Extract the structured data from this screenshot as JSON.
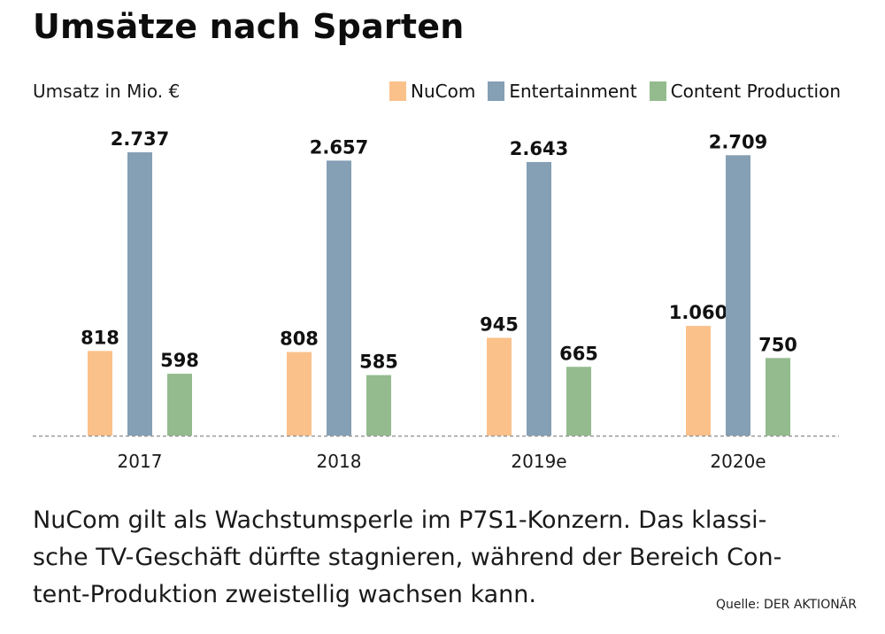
{
  "header": {
    "title": "Umsätze nach Sparten",
    "unit_label": "Umsatz in Mio. €"
  },
  "legend": [
    {
      "name": "NuCom",
      "color": "#fbc18a"
    },
    {
      "name": "Entertainment",
      "color": "#859fb5"
    },
    {
      "name": "Content Production",
      "color": "#94bb8e"
    }
  ],
  "chart_data": {
    "type": "bar",
    "title": "Umsätze nach Sparten",
    "ylabel": "Umsatz in Mio. €",
    "xlabel": "",
    "categories": [
      "2017",
      "2018",
      "2019e",
      "2020e"
    ],
    "series": [
      {
        "name": "NuCom",
        "color": "#fbc18a",
        "values": [
          818,
          808,
          945,
          1060
        ],
        "labels": [
          "818",
          "808",
          "945",
          "1.060"
        ]
      },
      {
        "name": "Entertainment",
        "color": "#859fb5",
        "values": [
          2737,
          2657,
          2643,
          2709
        ],
        "labels": [
          "2.737",
          "2.657",
          "2.643",
          "2.709"
        ]
      },
      {
        "name": "Content Production",
        "color": "#94bb8e",
        "values": [
          598,
          585,
          665,
          750
        ],
        "labels": [
          "598",
          "585",
          "665",
          "750"
        ]
      }
    ],
    "ylim": [
      0,
      2737
    ],
    "grid": false,
    "baseline": "dashed",
    "legend_position": "top-right"
  },
  "caption": {
    "lines": [
      "NuCom gilt als Wachstumsperle im P7S1-Konzern. Das klassi-",
      "sche TV-Geschäft dürfte stagnieren, während der Bereich Con-",
      "tent-Produktion zweistellig wachsen kann."
    ]
  },
  "source": "Quelle: DER AKTIONÄR"
}
